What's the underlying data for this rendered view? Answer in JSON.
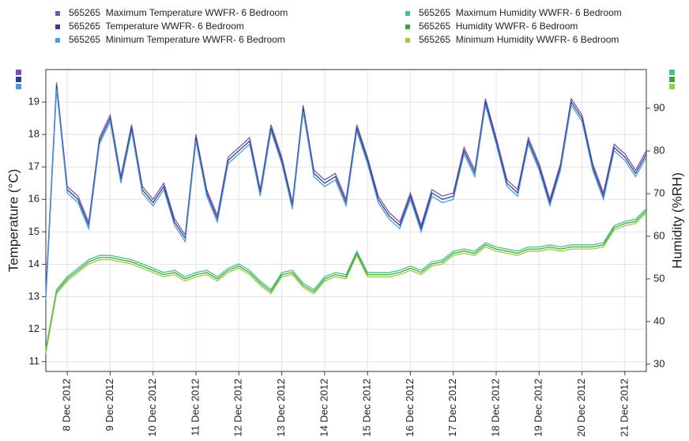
{
  "chart_data": {
    "type": "line",
    "x": [
      "2012-12-07T12:00",
      "2012-12-07T18:00",
      "2012-12-08T00:00",
      "2012-12-08T06:00",
      "2012-12-08T12:00",
      "2012-12-08T18:00",
      "2012-12-09T00:00",
      "2012-12-09T06:00",
      "2012-12-09T12:00",
      "2012-12-09T18:00",
      "2012-12-10T00:00",
      "2012-12-10T06:00",
      "2012-12-10T12:00",
      "2012-12-10T18:00",
      "2012-12-11T00:00",
      "2012-12-11T06:00",
      "2012-12-11T12:00",
      "2012-12-11T18:00",
      "2012-12-12T00:00",
      "2012-12-12T06:00",
      "2012-12-12T12:00",
      "2012-12-12T18:00",
      "2012-12-13T00:00",
      "2012-12-13T06:00",
      "2012-12-13T12:00",
      "2012-12-13T18:00",
      "2012-12-14T00:00",
      "2012-12-14T06:00",
      "2012-12-14T12:00",
      "2012-12-14T18:00",
      "2012-12-15T00:00",
      "2012-12-15T06:00",
      "2012-12-15T12:00",
      "2012-12-15T18:00",
      "2012-12-16T00:00",
      "2012-12-16T06:00",
      "2012-12-16T12:00",
      "2012-12-16T18:00",
      "2012-12-17T00:00",
      "2012-12-17T06:00",
      "2012-12-17T12:00",
      "2012-12-17T18:00",
      "2012-12-18T00:00",
      "2012-12-18T06:00",
      "2012-12-18T12:00",
      "2012-12-18T18:00",
      "2012-12-19T00:00",
      "2012-12-19T06:00",
      "2012-12-19T12:00",
      "2012-12-19T18:00",
      "2012-12-20T00:00",
      "2012-12-20T06:00",
      "2012-12-20T12:00",
      "2012-12-20T18:00",
      "2012-12-21T00:00",
      "2012-12-21T06:00",
      "2012-12-21T12:00"
    ],
    "series": [
      {
        "name": "565265  Maximum Temperature WWFR- 6 Bedroom",
        "color": "#7b52a8",
        "values": [
          13.1,
          19.6,
          16.4,
          16.1,
          15.3,
          17.9,
          18.6,
          16.7,
          18.3,
          16.4,
          16.0,
          16.5,
          15.4,
          14.9,
          18.0,
          16.3,
          15.5,
          17.3,
          17.6,
          17.9,
          16.3,
          18.3,
          17.3,
          15.9,
          18.9,
          16.9,
          16.6,
          16.8,
          16.0,
          18.3,
          17.3,
          16.1,
          15.6,
          15.3,
          16.2,
          15.2,
          16.3,
          16.1,
          16.2,
          17.6,
          16.9,
          19.1,
          17.9,
          16.6,
          16.3,
          17.9,
          17.1,
          16.0,
          17.1,
          19.1,
          18.6,
          17.1,
          16.2,
          17.7,
          17.4,
          16.9,
          17.5
        ]
      },
      {
        "name": "565265  Temperature WWFR- 6 Bedroom",
        "color": "#2e3f96",
        "values": [
          13.0,
          19.5,
          16.3,
          16.0,
          15.2,
          17.8,
          18.5,
          16.6,
          18.2,
          16.3,
          15.9,
          16.4,
          15.3,
          14.8,
          17.9,
          16.2,
          15.4,
          17.2,
          17.5,
          17.8,
          16.2,
          18.2,
          17.2,
          15.8,
          18.8,
          16.8,
          16.5,
          16.7,
          15.9,
          18.2,
          17.2,
          16.0,
          15.5,
          15.2,
          16.1,
          15.1,
          16.2,
          16.0,
          16.1,
          17.5,
          16.8,
          19.0,
          17.8,
          16.5,
          16.2,
          17.8,
          17.0,
          15.9,
          17.0,
          19.0,
          18.5,
          17.0,
          16.1,
          17.6,
          17.3,
          16.8,
          17.4
        ]
      },
      {
        "name": "565265  Minimum Temperature WWFR- 6 Bedroom",
        "color": "#4a9ed8",
        "values": [
          12.9,
          19.4,
          16.2,
          15.9,
          15.1,
          17.7,
          18.4,
          16.5,
          18.1,
          16.2,
          15.8,
          16.3,
          15.2,
          14.7,
          17.8,
          16.1,
          15.3,
          17.1,
          17.4,
          17.7,
          16.1,
          18.1,
          17.1,
          15.7,
          18.7,
          16.7,
          16.4,
          16.6,
          15.8,
          18.1,
          17.1,
          15.9,
          15.4,
          15.1,
          16.0,
          15.0,
          16.1,
          15.9,
          16.0,
          17.4,
          16.7,
          18.9,
          17.7,
          16.4,
          16.1,
          17.7,
          16.9,
          15.8,
          16.9,
          18.9,
          18.4,
          16.9,
          16.0,
          17.5,
          17.2,
          16.7,
          17.3
        ]
      },
      {
        "name": "565265  Maximum Humidity WWFR- 6 Bedroom",
        "color": "#4dbf8c",
        "axis": "y2",
        "values": [
          33.5,
          47.5,
          50.5,
          52.5,
          54.5,
          55.5,
          55.5,
          55,
          54.5,
          53.5,
          52.5,
          51.5,
          52,
          50.5,
          51.5,
          52,
          50.5,
          52.5,
          53.5,
          52,
          49.5,
          47.5,
          51.5,
          52,
          49,
          47.5,
          50.5,
          51.5,
          51,
          56.5,
          51.5,
          51.5,
          51.5,
          52,
          53,
          52,
          54,
          54.5,
          56.5,
          57,
          56.5,
          58.5,
          57.5,
          57,
          56.5,
          57.5,
          57.5,
          58,
          57.5,
          58,
          58,
          58,
          58.5,
          62.5,
          63.5,
          64,
          66.5
        ]
      },
      {
        "name": "565265  Humidity WWFR- 6 Bedroom",
        "color": "#3aa83a",
        "axis": "y2",
        "values": [
          33,
          47,
          50,
          52,
          54,
          55,
          55,
          54.5,
          54,
          53,
          52,
          51,
          51.5,
          50,
          51,
          51.5,
          50,
          52,
          53,
          51.5,
          49,
          47,
          51,
          51.5,
          48.5,
          47,
          50,
          51,
          50.5,
          56,
          51,
          51,
          51,
          51.5,
          52.5,
          51.5,
          53.5,
          54,
          56,
          56.5,
          56,
          58,
          57,
          56.5,
          56,
          57,
          57,
          57.5,
          57,
          57.5,
          57.5,
          57.5,
          58,
          62,
          63,
          63.5,
          66
        ]
      },
      {
        "name": "565265  Minimum Humidity WWFR- 6 Bedroom",
        "color": "#99cc44",
        "axis": "y2",
        "values": [
          32.5,
          46.5,
          49.5,
          51.5,
          53.5,
          54.5,
          54.5,
          54,
          53.5,
          52.5,
          51.5,
          50.5,
          51,
          49.5,
          50.5,
          51,
          49.5,
          51.5,
          52.5,
          51,
          48.5,
          46.5,
          50.5,
          51,
          48,
          46.5,
          49.5,
          50.5,
          50,
          55.5,
          50.5,
          50.5,
          50.5,
          51,
          52,
          51,
          53,
          53.5,
          55.5,
          56,
          55.5,
          57.5,
          56.5,
          56,
          55.5,
          56.5,
          56.5,
          57,
          56.5,
          57,
          57,
          57,
          57.5,
          61.5,
          62.5,
          63,
          65.5
        ]
      }
    ],
    "xlim": [
      "2012-12-07T12:00",
      "2012-12-21T12:00"
    ],
    "xticks": [
      {
        "value": "2012-12-08T00:00",
        "label": "8 Dec 2012"
      },
      {
        "value": "2012-12-09T00:00",
        "label": "9 Dec 2012"
      },
      {
        "value": "2012-12-10T00:00",
        "label": "10 Dec 2012"
      },
      {
        "value": "2012-12-11T00:00",
        "label": "11 Dec 2012"
      },
      {
        "value": "2012-12-12T00:00",
        "label": "12 Dec 2012"
      },
      {
        "value": "2012-12-13T00:00",
        "label": "13 Dec 2012"
      },
      {
        "value": "2012-12-14T00:00",
        "label": "14 Dec 2012"
      },
      {
        "value": "2012-12-15T00:00",
        "label": "15 Dec 2012"
      },
      {
        "value": "2012-12-16T00:00",
        "label": "16 Dec 2012"
      },
      {
        "value": "2012-12-17T00:00",
        "label": "17 Dec 2012"
      },
      {
        "value": "2012-12-18T00:00",
        "label": "18 Dec 2012"
      },
      {
        "value": "2012-12-19T00:00",
        "label": "19 Dec 2012"
      },
      {
        "value": "2012-12-20T00:00",
        "label": "20 Dec 2012"
      },
      {
        "value": "2012-12-21T00:00",
        "label": "21 Dec 2012"
      }
    ],
    "ylabel": "Temperature (°C)",
    "ylim": [
      10.7,
      20.0
    ],
    "yticks": [
      11,
      12,
      13,
      14,
      15,
      16,
      17,
      18,
      19
    ],
    "y2label": "Humidity (%RH)",
    "y2lim": [
      28.3,
      99.1
    ],
    "y2ticks": [
      30,
      40,
      50,
      60,
      70,
      80,
      90
    ],
    "grid": true,
    "legend": "top"
  }
}
